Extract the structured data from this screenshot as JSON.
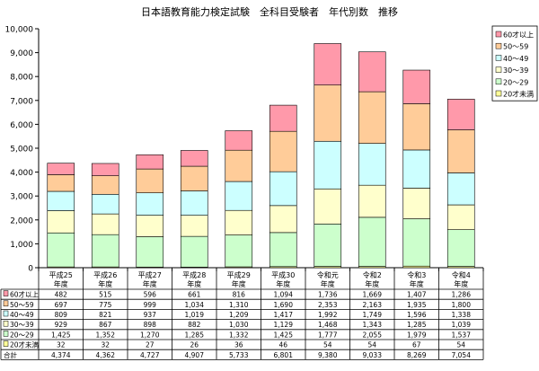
{
  "chart_data": {
    "type": "bar",
    "stacked": true,
    "title": "日本語教育能力検定試験　全科目受験者　年代別数　推移",
    "categories": [
      [
        "平成25",
        "年度"
      ],
      [
        "平成26",
        "年度"
      ],
      [
        "平成27",
        "年度"
      ],
      [
        "平成28",
        "年度"
      ],
      [
        "平成29",
        "年度"
      ],
      [
        "平成30",
        "年度"
      ],
      [
        "令和元",
        "年度"
      ],
      [
        "令和2",
        "年度"
      ],
      [
        "令和3",
        "年度"
      ],
      [
        "令和4",
        "年度"
      ]
    ],
    "ylim": [
      0,
      10000
    ],
    "yticks": [
      "0",
      "1,000",
      "2,000",
      "3,000",
      "4,000",
      "5,000",
      "6,000",
      "7,000",
      "8,000",
      "9,000",
      "10,000"
    ],
    "grid": false,
    "legend_position": "right",
    "series": [
      {
        "name": "20才未満",
        "color": "#ffff99",
        "values": [
          32,
          32,
          27,
          26,
          36,
          46,
          54,
          54,
          67,
          54
        ],
        "labels": [
          "32",
          "32",
          "27",
          "26",
          "36",
          "46",
          "54",
          "54",
          "67",
          "54"
        ]
      },
      {
        "name": "20～29",
        "color": "#ccffcc",
        "values": [
          1425,
          1352,
          1270,
          1285,
          1332,
          1425,
          1777,
          2055,
          1979,
          1537
        ],
        "labels": [
          "1,425",
          "1,352",
          "1,270",
          "1,285",
          "1,332",
          "1,425",
          "1,777",
          "2,055",
          "1,979",
          "1,537"
        ]
      },
      {
        "name": "30～39",
        "color": "#ffffcc",
        "values": [
          929,
          867,
          898,
          882,
          1030,
          1129,
          1468,
          1343,
          1285,
          1039
        ],
        "labels": [
          "929",
          "867",
          "898",
          "882",
          "1,030",
          "1,129",
          "1,468",
          "1,343",
          "1,285",
          "1,039"
        ]
      },
      {
        "name": "40～49",
        "color": "#ccffff",
        "values": [
          809,
          821,
          937,
          1019,
          1209,
          1417,
          1992,
          1749,
          1596,
          1338
        ],
        "labels": [
          "809",
          "821",
          "937",
          "1,019",
          "1,209",
          "1,417",
          "1,992",
          "1,749",
          "1,596",
          "1,338"
        ]
      },
      {
        "name": "50～59",
        "color": "#ffcc99",
        "values": [
          697,
          775,
          999,
          1034,
          1310,
          1690,
          2353,
          2163,
          1935,
          1800
        ],
        "labels": [
          "697",
          "775",
          "999",
          "1,034",
          "1,310",
          "1,690",
          "2,353",
          "2,163",
          "1,935",
          "1,800"
        ]
      },
      {
        "name": "60才以上",
        "color": "#ff99aa",
        "values": [
          482,
          515,
          596,
          661,
          816,
          1094,
          1736,
          1669,
          1407,
          1286
        ],
        "labels": [
          "482",
          "515",
          "596",
          "661",
          "816",
          "1,094",
          "1,736",
          "1,669",
          "1,407",
          "1,286"
        ]
      }
    ],
    "table_rows_order": [
      "60才以上",
      "50～59",
      "40～49",
      "30～39",
      "20～29",
      "20才未満"
    ],
    "totals": {
      "name": "合計",
      "values": [
        4374,
        4362,
        4727,
        4907,
        5733,
        6801,
        9380,
        9033,
        8269,
        7054
      ],
      "labels": [
        "4,374",
        "4,362",
        "4,727",
        "4,907",
        "5,733",
        "6,801",
        "9,380",
        "9,033",
        "8,269",
        "7,054"
      ]
    },
    "legend_order": [
      "60才以上",
      "50～59",
      "40～49",
      "30～39",
      "20～29",
      "20才未満"
    ]
  }
}
